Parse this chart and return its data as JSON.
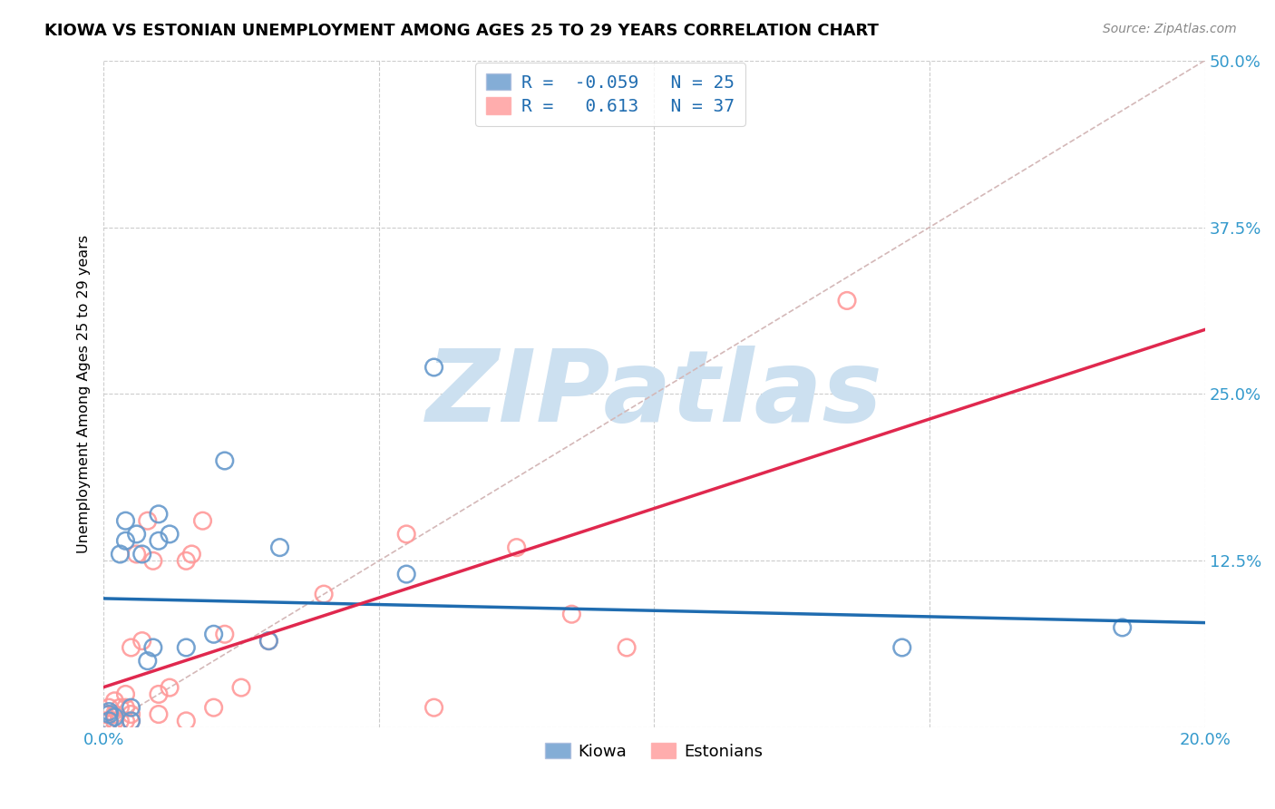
{
  "title": "KIOWA VS ESTONIAN UNEMPLOYMENT AMONG AGES 25 TO 29 YEARS CORRELATION CHART",
  "source": "Source: ZipAtlas.com",
  "ylabel": "Unemployment Among Ages 25 to 29 years",
  "xlim": [
    0.0,
    0.2
  ],
  "ylim": [
    0.0,
    0.5
  ],
  "xticks": [
    0.0,
    0.05,
    0.1,
    0.15,
    0.2
  ],
  "yticks": [
    0.0,
    0.125,
    0.25,
    0.375,
    0.5
  ],
  "xtick_labels": [
    "0.0%",
    "",
    "",
    "",
    "20.0%"
  ],
  "ytick_labels": [
    "",
    "12.5%",
    "25.0%",
    "37.5%",
    "50.0%"
  ],
  "kiowa_color": "#6699cc",
  "estonian_color": "#ff9999",
  "kiowa_R": -0.059,
  "kiowa_N": 25,
  "estonian_R": 0.613,
  "estonian_N": 37,
  "kiowa_x": [
    0.001,
    0.001,
    0.001,
    0.002,
    0.003,
    0.004,
    0.004,
    0.005,
    0.005,
    0.006,
    0.007,
    0.008,
    0.009,
    0.01,
    0.01,
    0.012,
    0.015,
    0.02,
    0.022,
    0.03,
    0.032,
    0.055,
    0.06,
    0.145,
    0.185
  ],
  "kiowa_y": [
    0.005,
    0.01,
    0.012,
    0.008,
    0.13,
    0.14,
    0.155,
    0.005,
    0.015,
    0.145,
    0.13,
    0.05,
    0.06,
    0.14,
    0.16,
    0.145,
    0.06,
    0.07,
    0.2,
    0.065,
    0.135,
    0.115,
    0.27,
    0.06,
    0.075
  ],
  "estonian_x": [
    0.0,
    0.0,
    0.001,
    0.001,
    0.002,
    0.002,
    0.002,
    0.003,
    0.003,
    0.004,
    0.004,
    0.004,
    0.005,
    0.005,
    0.005,
    0.006,
    0.007,
    0.008,
    0.009,
    0.01,
    0.01,
    0.012,
    0.015,
    0.015,
    0.016,
    0.018,
    0.02,
    0.022,
    0.025,
    0.03,
    0.04,
    0.055,
    0.06,
    0.075,
    0.085,
    0.095,
    0.135
  ],
  "estonian_y": [
    0.005,
    0.01,
    0.005,
    0.015,
    0.005,
    0.01,
    0.02,
    0.005,
    0.015,
    0.005,
    0.015,
    0.025,
    0.005,
    0.01,
    0.06,
    0.13,
    0.065,
    0.155,
    0.125,
    0.01,
    0.025,
    0.03,
    0.005,
    0.125,
    0.13,
    0.155,
    0.015,
    0.07,
    0.03,
    0.065,
    0.1,
    0.145,
    0.015,
    0.135,
    0.085,
    0.06,
    0.32
  ],
  "kiowa_line_color": "#1f6cb0",
  "estonian_line_color": "#e0284e",
  "diagonal_color": "#d4b8b8",
  "watermark": "ZIPatlas",
  "watermark_color": "#cce0f0"
}
